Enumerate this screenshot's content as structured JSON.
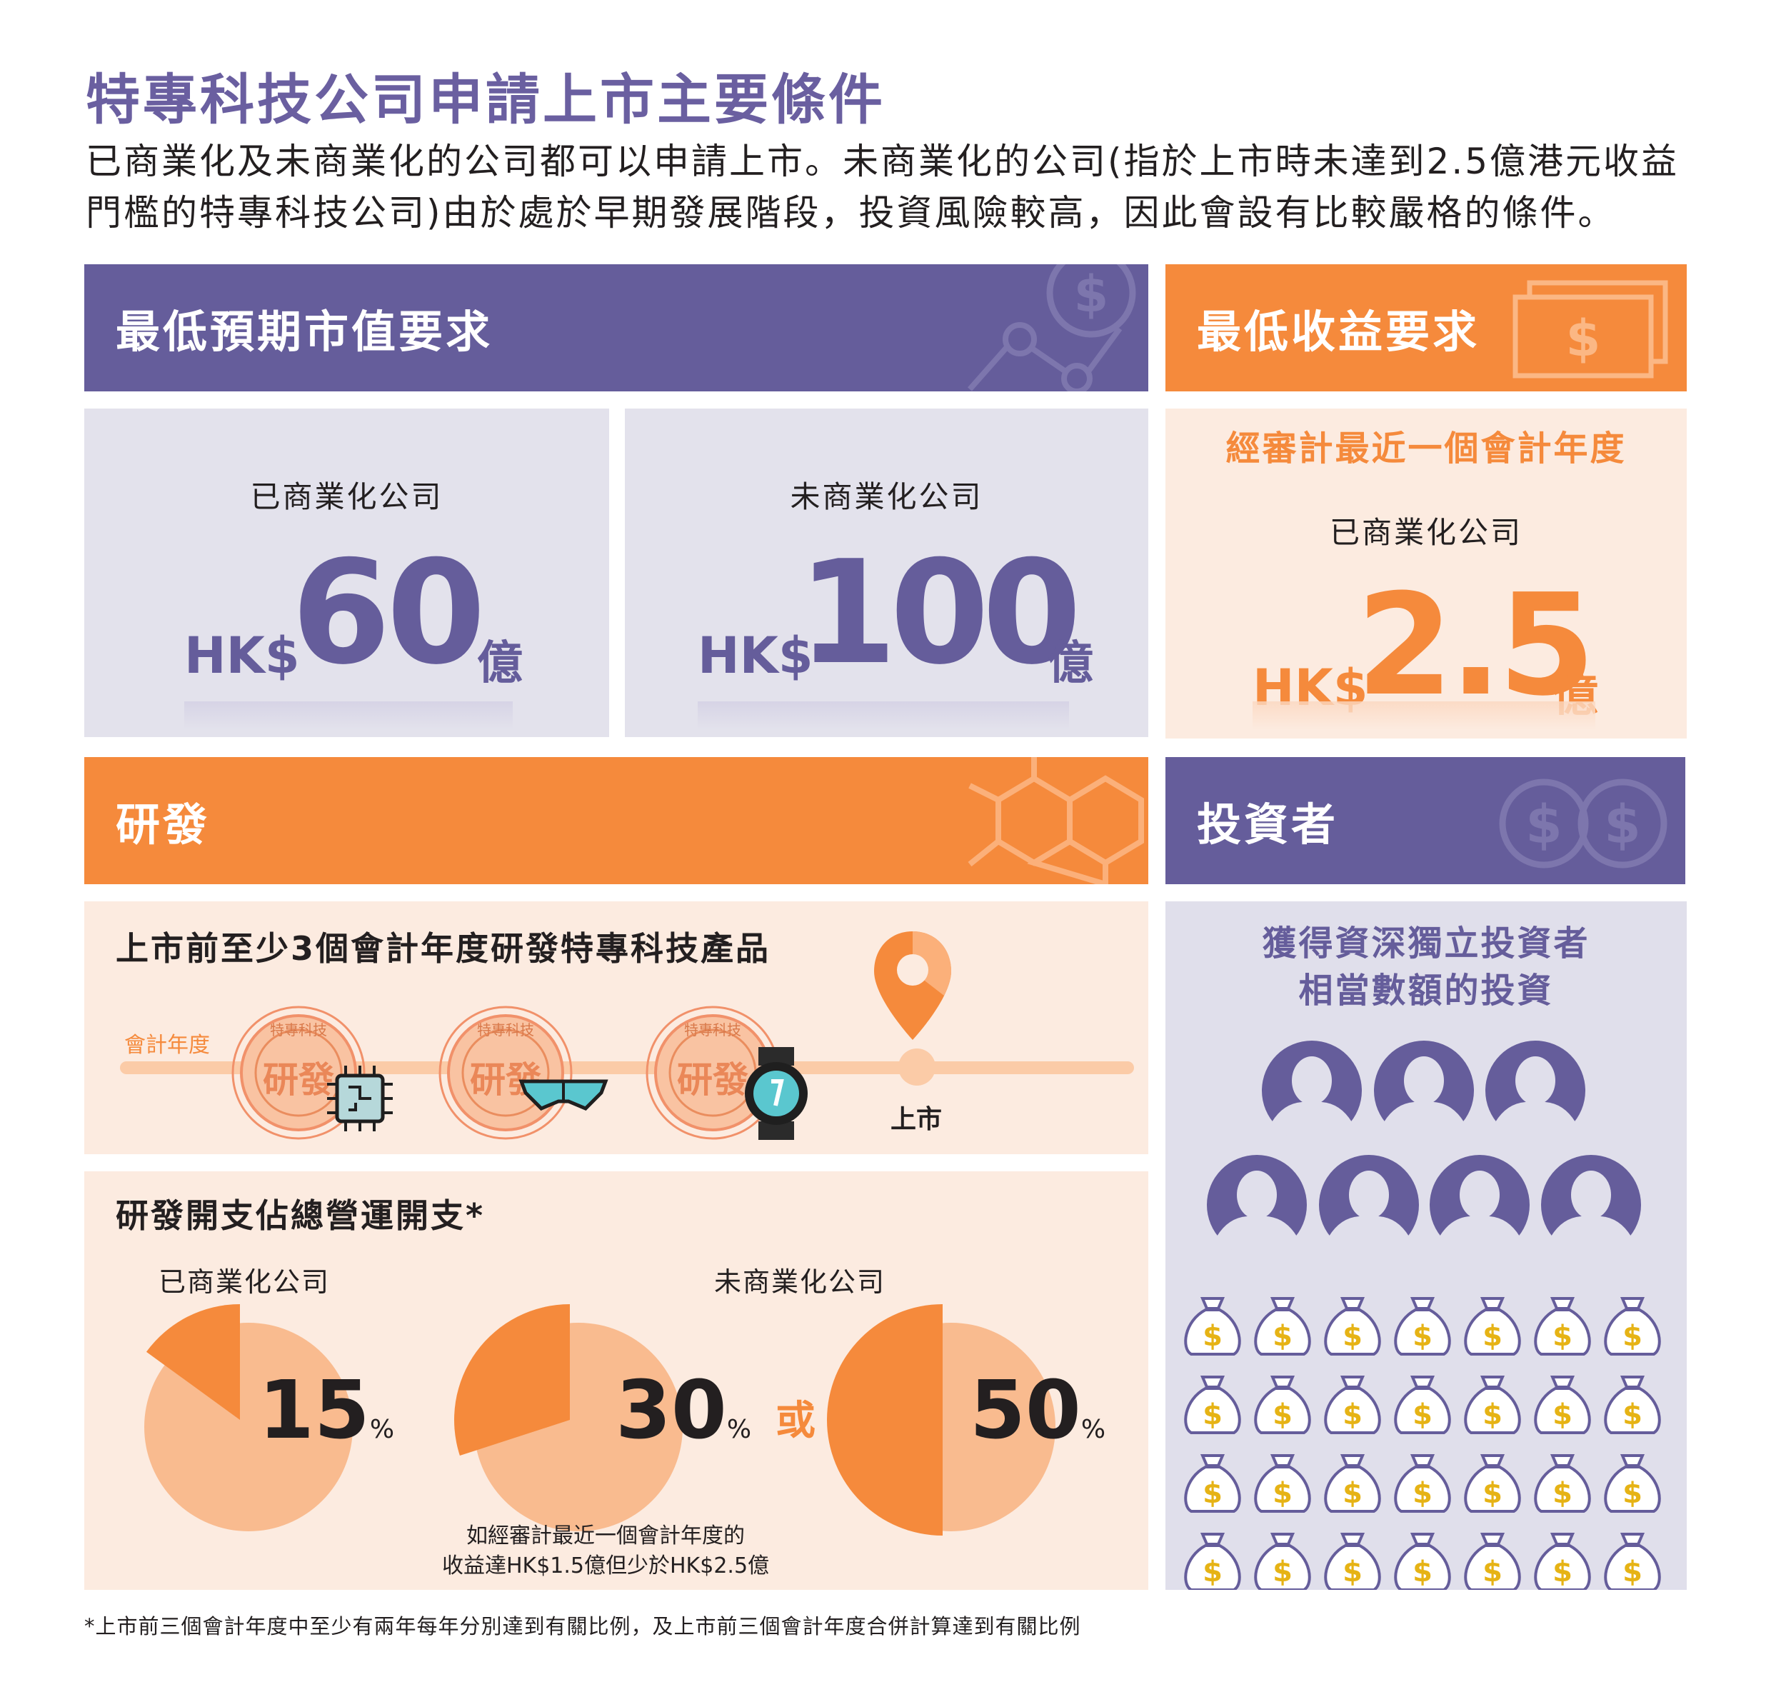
{
  "title": "特專科技公司申請上市主要條件",
  "intro_line1": "已商業化及未商業化的公司都可以申請上市。未商業化的公司(指於上市時未達到2.5億港元收益",
  "intro_line2": "門檻的特專科技公司)由於處於早期發展階段，投資風險較高，因此會設有比較嚴格的條件。",
  "market_cap": {
    "heading": "最低預期市值要求",
    "commercial": {
      "label": "已商業化公司",
      "prefix": "HK$",
      "value": "60",
      "unit": "億"
    },
    "precommercial": {
      "label": "未商業化公司",
      "prefix": "HK$",
      "value": "100",
      "unit": "億"
    }
  },
  "revenue": {
    "heading": "最低收益要求",
    "period": "經審計最近一個會計年度",
    "label": "已商業化公司",
    "prefix": "HK$",
    "value": "2.5",
    "unit": "億"
  },
  "rnd": {
    "heading": "研發",
    "timeline_title": "上市前至少3個會計年度研發特專科技產品",
    "timeline_axis": "會計年度",
    "stamp_text": "研發",
    "stamp_ring_text": "特專科技",
    "listing_label": "上市",
    "expense_title": "研發開支佔總營運開支*",
    "commercial_label": "已商業化公司",
    "precommercial_label": "未商業化公司",
    "pct_commercial": "15",
    "pct_pre_a": "30",
    "pct_pre_b": "50",
    "pct_sign": "%",
    "or_label": "或",
    "note_line1": "如經審計最近一個會計年度的",
    "note_line2": "收益達HK$1.5億但少於HK$2.5億",
    "chart_values": [
      15,
      30,
      50
    ]
  },
  "investors": {
    "heading": "投資者",
    "line1": "獲得資深獨立投資者",
    "line2": "相當數額的投資"
  },
  "footnote": "*上市前三個會計年度中至少有兩年每年分別達到有關比例，及上市前三個會計年度合併計算達到有關比例",
  "colors": {
    "purple": "#655d9b",
    "orange": "#f58a3c",
    "lavender": "#e3e2ec",
    "peach": "#fcebe0"
  }
}
